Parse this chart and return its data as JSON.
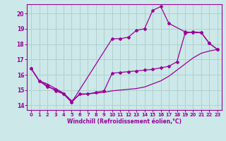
{
  "xlabel": "Windchill (Refroidissement éolien,°C)",
  "background_color": "#cce8e8",
  "grid_color": "#b0d0d0",
  "line_color": "#990099",
  "xlim": [
    -0.5,
    23.5
  ],
  "ylim": [
    13.7,
    20.6
  ],
  "yticks": [
    14,
    15,
    16,
    17,
    18,
    19,
    20
  ],
  "xticks": [
    0,
    1,
    2,
    3,
    4,
    5,
    6,
    7,
    8,
    9,
    10,
    11,
    12,
    13,
    14,
    15,
    16,
    17,
    18,
    19,
    20,
    21,
    22,
    23
  ],
  "series1_x": [
    0,
    1,
    2,
    3,
    4,
    5,
    6,
    7,
    8,
    9,
    10,
    11,
    12,
    13,
    14,
    15,
    16,
    17,
    18,
    19,
    20,
    21,
    22,
    23
  ],
  "series1_y": [
    16.4,
    15.6,
    15.4,
    15.1,
    14.8,
    14.3,
    14.7,
    14.75,
    14.8,
    14.85,
    14.95,
    15.0,
    15.05,
    15.1,
    15.2,
    15.4,
    15.6,
    15.9,
    16.3,
    16.7,
    17.1,
    17.4,
    17.55,
    17.65
  ],
  "series2_x": [
    0,
    1,
    2,
    3,
    4,
    5,
    6,
    7,
    8,
    9,
    10,
    11,
    12,
    13,
    14,
    15,
    16,
    17,
    18,
    19,
    20,
    21,
    22,
    23
  ],
  "series2_y": [
    16.4,
    15.6,
    15.2,
    15.05,
    14.75,
    14.2,
    14.75,
    14.75,
    14.85,
    14.95,
    16.1,
    16.15,
    16.2,
    16.25,
    16.3,
    16.35,
    16.45,
    16.55,
    16.85,
    18.7,
    18.8,
    18.75,
    18.05,
    17.65
  ],
  "series3_x": [
    0,
    1,
    2,
    3,
    4,
    5,
    10,
    11,
    12,
    13,
    14,
    15,
    16,
    17,
    19,
    20,
    21,
    22,
    23
  ],
  "series3_y": [
    16.4,
    15.6,
    15.3,
    14.95,
    14.75,
    14.2,
    18.35,
    18.35,
    18.45,
    18.9,
    19.0,
    20.2,
    20.45,
    19.35,
    18.8,
    18.75,
    18.75,
    18.05,
    17.65
  ]
}
